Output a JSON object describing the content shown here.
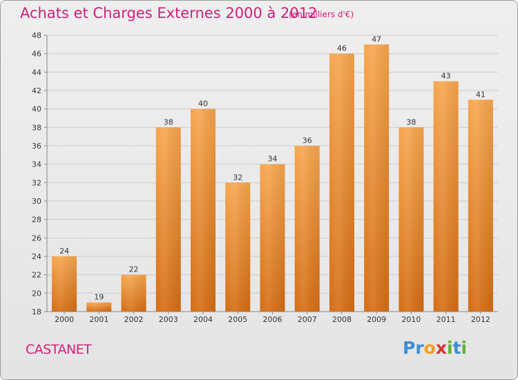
{
  "header": {
    "title": "Achats et Charges Externes 2000 à 2012",
    "subtitle": "(en milliers d'€)"
  },
  "footer": {
    "location": "CASTANET",
    "logo_letters": [
      {
        "ch": "P",
        "color": "#3a8fd6"
      },
      {
        "ch": "r",
        "color": "#3a8fd6"
      },
      {
        "ch": "o",
        "color": "#f0a020"
      },
      {
        "ch": "x",
        "color": "#e03030"
      },
      {
        "ch": "i",
        "color": "#60b030"
      },
      {
        "ch": "t",
        "color": "#3a8fd6"
      },
      {
        "ch": "i",
        "color": "#60b030"
      }
    ]
  },
  "chart_data": {
    "type": "bar",
    "categories": [
      "2000",
      "2001",
      "2002",
      "2003",
      "2004",
      "2005",
      "2006",
      "2007",
      "2008",
      "2009",
      "2010",
      "2011",
      "2012"
    ],
    "values": [
      24,
      19,
      22,
      38,
      40,
      32,
      34,
      36,
      46,
      47,
      38,
      43,
      41
    ],
    "ylim": [
      18,
      48
    ],
    "yticks": [
      18,
      20,
      22,
      24,
      26,
      28,
      30,
      32,
      34,
      36,
      38,
      40,
      42,
      44,
      46,
      48
    ],
    "grid": true,
    "colors": {
      "bar_top": "#f7a64e",
      "bar_bottom": "#d46d14",
      "grid": "#cccccc"
    }
  }
}
